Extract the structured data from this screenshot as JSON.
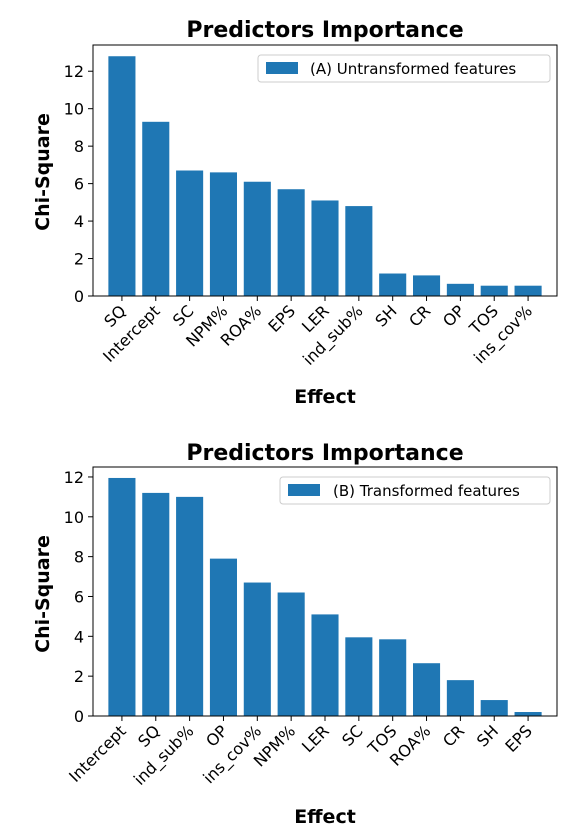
{
  "chart_data": [
    {
      "type": "bar",
      "title": "Predictors Importance",
      "xlabel": "Effect",
      "ylabel": "Chi-Square",
      "ylim": [
        0,
        13.4
      ],
      "yticks": [
        0,
        2,
        4,
        6,
        8,
        10,
        12
      ],
      "legend_placement": "top-right",
      "grid": false,
      "color": "#1f77b4",
      "categories": [
        "SQ",
        "Intercept",
        "SC",
        "NPM%",
        "ROA%",
        "EPS",
        "LER",
        "ind_sub%",
        "SH",
        "CR",
        "OP",
        "TOS",
        "ins_cov%"
      ],
      "series": [
        {
          "name": "(A) Untransformed features",
          "values": [
            12.8,
            9.3,
            6.7,
            6.6,
            6.1,
            5.7,
            5.1,
            4.8,
            1.2,
            1.1,
            0.65,
            0.55,
            0.55
          ]
        }
      ]
    },
    {
      "type": "bar",
      "title": "Predictors Importance",
      "xlabel": "Effect",
      "ylabel": "Chi-Square",
      "ylim": [
        0,
        12.5
      ],
      "yticks": [
        0,
        2,
        4,
        6,
        8,
        10,
        12
      ],
      "legend_placement": "top-right",
      "grid": false,
      "color": "#1f77b4",
      "categories": [
        "Intercept",
        "SQ",
        "ind_sub%",
        "OP",
        "ins_cov%",
        "NPM%",
        "LER",
        "SC",
        "TOS",
        "ROA%",
        "CR",
        "SH",
        "EPS"
      ],
      "series": [
        {
          "name": "(B) Transformed features",
          "values": [
            11.95,
            11.2,
            11.0,
            7.9,
            6.7,
            6.2,
            5.1,
            3.95,
            3.85,
            2.65,
            1.8,
            0.8,
            0.2
          ]
        }
      ]
    }
  ]
}
